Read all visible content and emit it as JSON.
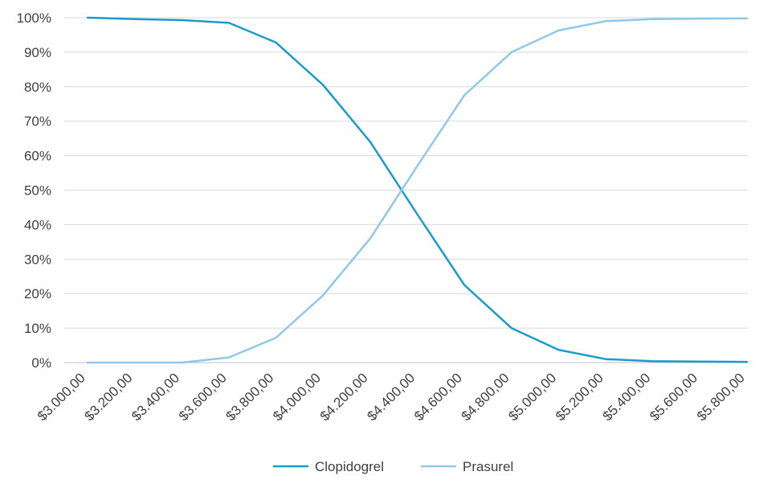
{
  "chart_data": {
    "type": "line",
    "title": "",
    "xlabel": "",
    "ylabel": "",
    "categories": [
      "$3.000,00",
      "$3.200,00",
      "$3.400,00",
      "$3.600,00",
      "$3.800,00",
      "$4.000,00",
      "$4.200,00",
      "$4.400,00",
      "$4.600,00",
      "$4.800,00",
      "$5.000,00",
      "$5.200,00",
      "$5.400,00",
      "$5.600,00",
      "$5.800,00"
    ],
    "y_ticks": [
      "0%",
      "10%",
      "20%",
      "30%",
      "40%",
      "50%",
      "60%",
      "70%",
      "80%",
      "90%",
      "100%"
    ],
    "ylim": [
      0,
      1
    ],
    "grid": true,
    "legend_position": "bottom",
    "series": [
      {
        "name": "Clopidogrel",
        "color": "#1a9bd0",
        "values": [
          1.0,
          0.996,
          0.993,
          0.985,
          0.928,
          0.805,
          0.64,
          0.43,
          0.225,
          0.1,
          0.037,
          0.01,
          0.004,
          0.003,
          0.002
        ]
      },
      {
        "name": "Prasurel",
        "color": "#8ec8ea",
        "values": [
          0.0,
          0.0,
          0.0,
          0.015,
          0.072,
          0.195,
          0.36,
          0.57,
          0.775,
          0.9,
          0.963,
          0.99,
          0.996,
          0.997,
          0.998
        ]
      }
    ]
  }
}
